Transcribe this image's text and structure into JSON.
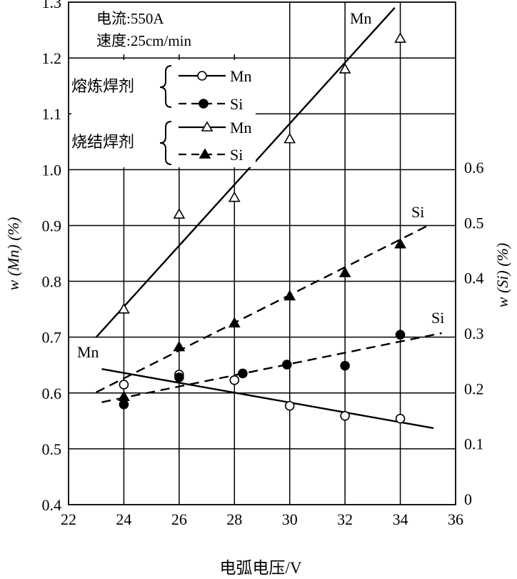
{
  "chart_data": {
    "type": "line",
    "xlabel": "电弧电压/V",
    "ylabel_left": "w (Mn) (%)",
    "ylabel_right": "w (Si) (%)",
    "x_ticks": [
      "22",
      "24",
      "26",
      "28",
      "30",
      "32",
      "34",
      "36"
    ],
    "y_left_ticks": [
      "0.4",
      "0.5",
      "0.6",
      "0.7",
      "0.8",
      "0.9",
      "1.0",
      "1.1",
      "1.2",
      "1.3"
    ],
    "y_right_ticks": [
      "0",
      "0.1",
      "0.2",
      "0.3",
      "0.4",
      "0.5",
      "0.6"
    ],
    "xlim": [
      22,
      36
    ],
    "ylim_left": [
      0.4,
      1.3
    ],
    "ylim_right": [
      0,
      0.6
    ],
    "grid": true,
    "conditions": [
      "电流:550A",
      "速度:25cm/min"
    ],
    "legend": {
      "groups": [
        {
          "label": "熔炼焊剂",
          "entries": [
            "Mn",
            "Si"
          ]
        },
        {
          "label": "烧结焊剂",
          "entries": [
            "Mn",
            "Si"
          ]
        }
      ]
    },
    "line_labels": [
      "Mn",
      "Si",
      "Si",
      "Mn"
    ],
    "series": [
      {
        "name": "Mn",
        "group": "熔炼焊剂",
        "axis": "left",
        "marker": "open-circle",
        "line": "solid",
        "x": [
          24,
          26,
          28,
          30,
          32,
          34
        ],
        "y": [
          0.615,
          0.633,
          0.623,
          0.577,
          0.559,
          0.554
        ],
        "fit": [
          [
            23.2,
            0.643
          ],
          [
            35.2,
            0.537
          ]
        ]
      },
      {
        "name": "Si",
        "group": "熔炼焊剂",
        "axis": "right",
        "marker": "filled-circle",
        "line": "dashed",
        "x": [
          24,
          26,
          28.3,
          29.9,
          32,
          34
        ],
        "y": [
          0.171,
          0.22,
          0.227,
          0.243,
          0.241,
          0.297
        ],
        "fit": [
          [
            23.2,
            0.175
          ],
          [
            35.5,
            0.3
          ]
        ]
      },
      {
        "name": "Mn",
        "group": "烧结焊剂",
        "axis": "left",
        "marker": "open-triangle",
        "line": "solid",
        "x": [
          24,
          26,
          28,
          30,
          32,
          34
        ],
        "y": [
          0.75,
          0.92,
          0.95,
          1.055,
          1.18,
          1.235
        ],
        "fit": [
          [
            23.0,
            0.7
          ],
          [
            33.8,
            1.29
          ]
        ]
      },
      {
        "name": "Si",
        "group": "烧结焊剂",
        "axis": "right",
        "marker": "filled-triangle",
        "line": "dashed",
        "x": [
          24,
          26,
          28,
          30,
          32,
          34
        ],
        "y": [
          0.185,
          0.275,
          0.318,
          0.367,
          0.409,
          0.461
        ],
        "fit": [
          [
            23.0,
            0.193
          ],
          [
            35.1,
            0.497
          ]
        ]
      }
    ]
  }
}
